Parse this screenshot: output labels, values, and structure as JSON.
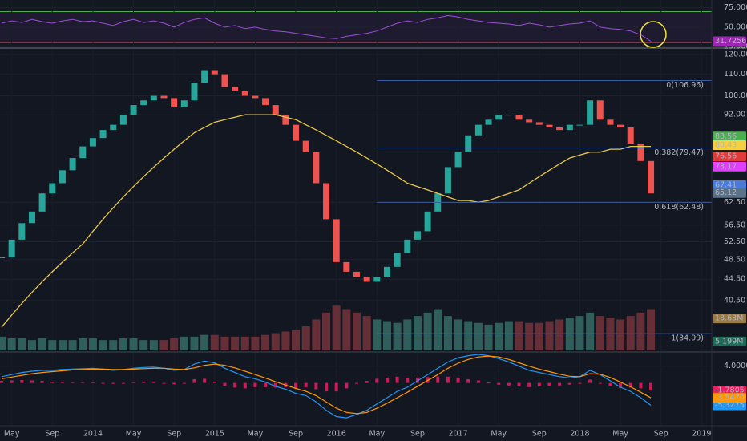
{
  "chart_data": [
    {
      "type": "line",
      "xlim": [
        "2013-04",
        "2019-02"
      ],
      "ylim": [
        25,
        83
      ],
      "yticks": [
        {
          "value": 75,
          "label": "75.0000"
        },
        {
          "value": 50,
          "label": "50.0000"
        },
        {
          "value": 25,
          "label": "25.0000"
        }
      ],
      "hlines": [
        {
          "value": 70,
          "color": "#4caf50"
        },
        {
          "value": 30,
          "color": "#f23645"
        }
      ],
      "x": [
        "2013-04",
        "2013-05",
        "2013-06",
        "2013-07",
        "2013-08",
        "2013-09",
        "2013-10",
        "2013-11",
        "2013-12",
        "2014-01",
        "2014-02",
        "2014-03",
        "2014-04",
        "2014-05",
        "2014-06",
        "2014-07",
        "2014-08",
        "2014-09",
        "2014-10",
        "2014-11",
        "2014-12",
        "2015-01",
        "2015-02",
        "2015-03",
        "2015-04",
        "2015-05",
        "2015-06",
        "2015-07",
        "2015-08",
        "2015-09",
        "2015-10",
        "2015-11",
        "2015-12",
        "2016-01",
        "2016-02",
        "2016-03",
        "2016-04",
        "2016-05",
        "2016-06",
        "2016-07",
        "2016-08",
        "2016-09",
        "2016-10",
        "2016-11",
        "2016-12",
        "2017-01",
        "2017-02",
        "2017-03",
        "2017-04",
        "2017-05",
        "2017-06",
        "2017-07",
        "2017-08",
        "2017-09",
        "2017-10",
        "2017-11",
        "2017-12",
        "2018-01",
        "2018-02",
        "2018-03",
        "2018-04",
        "2018-05",
        "2018-06",
        "2018-07",
        "2018-08"
      ],
      "series": [
        {
          "color": "#9c4fd6",
          "badge_color": "#9c27b0",
          "values": [
            55,
            58,
            56,
            60,
            57,
            55,
            58,
            60,
            57,
            58,
            55,
            52,
            57,
            60,
            56,
            58,
            55,
            50,
            56,
            60,
            62,
            55,
            50,
            52,
            48,
            50,
            47,
            45,
            44,
            42,
            40,
            38,
            36,
            35,
            38,
            40,
            42,
            45,
            50,
            55,
            58,
            56,
            60,
            62,
            65,
            63,
            60,
            58,
            56,
            55,
            54,
            52,
            55,
            53,
            50,
            52,
            54,
            55,
            58,
            50,
            48,
            47,
            45,
            40,
            31.7256
          ]
        }
      ]
    },
    {
      "type": "candlestick",
      "log_scale": true,
      "xlim": [
        "2013-04",
        "2019-02"
      ],
      "ylim": [
        32.5,
        122.6
      ],
      "yticks": [
        {
          "value": 120,
          "label": "120.00"
        },
        {
          "value": 110,
          "label": "110.00"
        },
        {
          "value": 100,
          "label": "100.00"
        },
        {
          "value": 92,
          "label": "92.00"
        },
        {
          "value": 62.5,
          "label": "62.50"
        },
        {
          "value": 56.5,
          "label": "56.50"
        },
        {
          "value": 52.5,
          "label": "52.50"
        },
        {
          "value": 48.5,
          "label": "48.50"
        },
        {
          "value": 44.5,
          "label": "44.50"
        },
        {
          "value": 40.5,
          "label": "40.50"
        }
      ],
      "up_color": "#26a69a",
      "down_color": "#ef5350",
      "x": [
        "2013-04",
        "2013-05",
        "2013-06",
        "2013-07",
        "2013-08",
        "2013-09",
        "2013-10",
        "2013-11",
        "2013-12",
        "2014-01",
        "2014-02",
        "2014-03",
        "2014-04",
        "2014-05",
        "2014-06",
        "2014-07",
        "2014-08",
        "2014-09",
        "2014-10",
        "2014-11",
        "2014-12",
        "2015-01",
        "2015-02",
        "2015-03",
        "2015-04",
        "2015-05",
        "2015-06",
        "2015-07",
        "2015-08",
        "2015-09",
        "2015-10",
        "2015-11",
        "2015-12",
        "2016-01",
        "2016-02",
        "2016-03",
        "2016-04",
        "2016-05",
        "2016-06",
        "2016-07",
        "2016-08",
        "2016-09",
        "2016-10",
        "2016-11",
        "2016-12",
        "2017-01",
        "2017-02",
        "2017-03",
        "2017-04",
        "2017-05",
        "2017-06",
        "2017-07",
        "2017-08",
        "2017-09",
        "2017-10",
        "2017-11",
        "2017-12",
        "2018-01",
        "2018-02",
        "2018-03",
        "2018-04",
        "2018-05",
        "2018-06",
        "2018-07",
        "2018-08"
      ],
      "values": [
        49,
        53,
        57,
        60,
        65,
        68,
        72,
        76,
        80,
        83,
        86,
        88,
        92,
        96,
        98,
        100,
        99,
        95,
        98,
        106,
        112,
        110,
        104,
        102,
        100,
        99,
        96,
        92,
        88,
        82,
        78,
        68,
        58,
        48,
        46,
        45,
        44,
        45,
        47,
        50,
        53,
        55,
        60,
        65,
        73,
        78,
        84,
        88,
        90,
        92,
        92,
        90,
        89,
        88,
        87,
        86,
        88,
        88,
        98,
        90,
        88,
        87,
        81,
        75,
        65
      ],
      "series": [
        {
          "color": "#e6c84a",
          "values": [
            36,
            38,
            40,
            42,
            44,
            46,
            48,
            50,
            52,
            55,
            58,
            61,
            64,
            67,
            70,
            73,
            76,
            79,
            82,
            85,
            87,
            89,
            90,
            91,
            92,
            92,
            92,
            92,
            91,
            90,
            88,
            86,
            84,
            82,
            80,
            78,
            76,
            74,
            72,
            70,
            68,
            67,
            66,
            65,
            64,
            63,
            63,
            62.5,
            63,
            64,
            65,
            66,
            68,
            70,
            72,
            74,
            76,
            77,
            78,
            78,
            79,
            79,
            80,
            80,
            80
          ]
        }
      ],
      "fib_levels": [
        {
          "value": 106.96,
          "label": "0(106.96)"
        },
        {
          "value": 79.47,
          "label": "0.382(79.47)"
        },
        {
          "value": 62.48,
          "label": "0.618(62.48)"
        },
        {
          "value": 34.99,
          "label": "1(34.99)"
        }
      ],
      "fib_start": "2016-05",
      "fib_color": "#3d5a9a",
      "price_badges": [
        {
          "value": 83.56,
          "color": "#4caf50"
        },
        {
          "value": 80.43,
          "color": "#f5d142"
        },
        {
          "value": 76.56,
          "color": "#e03b3b"
        },
        {
          "value": 73.17,
          "color": "#e040fb"
        },
        {
          "value": 67.41,
          "color": "#4a7bd8"
        },
        {
          "value": 65.12,
          "color": "#5a7389"
        }
      ]
    },
    {
      "type": "bar",
      "xlim": [
        "2013-04",
        "2019-02"
      ],
      "ylim": [
        0,
        175
      ],
      "x": [
        "2013-04",
        "2013-05",
        "2013-06",
        "2013-07",
        "2013-08",
        "2013-09",
        "2013-10",
        "2013-11",
        "2013-12",
        "2014-01",
        "2014-02",
        "2014-03",
        "2014-04",
        "2014-05",
        "2014-06",
        "2014-07",
        "2014-08",
        "2014-09",
        "2014-10",
        "2014-11",
        "2014-12",
        "2015-01",
        "2015-02",
        "2015-03",
        "2015-04",
        "2015-05",
        "2015-06",
        "2015-07",
        "2015-08",
        "2015-09",
        "2015-10",
        "2015-11",
        "2015-12",
        "2016-01",
        "2016-02",
        "2016-03",
        "2016-04",
        "2016-05",
        "2016-06",
        "2016-07",
        "2016-08",
        "2016-09",
        "2016-10",
        "2016-11",
        "2016-12",
        "2017-01",
        "2017-02",
        "2017-03",
        "2017-04",
        "2017-05",
        "2017-06",
        "2017-07",
        "2017-08",
        "2017-09",
        "2017-10",
        "2017-11",
        "2017-12",
        "2018-01",
        "2018-02",
        "2018-03",
        "2018-04",
        "2018-05",
        "2018-06",
        "2018-07",
        "2018-08"
      ],
      "values": [
        8,
        7,
        7,
        6,
        7,
        6,
        6,
        6,
        7,
        7,
        6,
        6,
        7,
        7,
        6,
        6,
        6,
        7,
        8,
        8,
        9,
        9,
        8,
        8,
        8,
        8,
        9,
        10,
        11,
        12,
        14,
        18,
        22,
        26,
        24,
        22,
        20,
        18,
        17,
        16,
        18,
        20,
        22,
        24,
        20,
        18,
        17,
        16,
        15,
        16,
        17,
        17,
        16,
        16,
        17,
        18,
        19,
        20,
        22,
        20,
        19,
        18,
        20,
        22,
        24
      ],
      "color": "#3d7f74",
      "badges": [
        {
          "value": 18.63,
          "label": "18.63M",
          "color": "#9a7a45"
        },
        {
          "value": 5.199,
          "label": "5.199M",
          "color": "#1e6b57"
        }
      ]
    },
    {
      "type": "macd",
      "xlim": [
        "2013-04",
        "2019-02"
      ],
      "ylim": [
        -10,
        7
      ],
      "yticks": [
        {
          "value": 4,
          "label": "4.0000"
        }
      ],
      "xticks": [
        {
          "value": "2013-05",
          "label": "May"
        },
        {
          "value": "2013-09",
          "label": "Sep"
        },
        {
          "value": "2014-01",
          "label": "2014"
        },
        {
          "value": "2014-05",
          "label": "May"
        },
        {
          "value": "2014-09",
          "label": "Sep"
        },
        {
          "value": "2015-01",
          "label": "2015"
        },
        {
          "value": "2015-05",
          "label": "May"
        },
        {
          "value": "2015-09",
          "label": "Sep"
        },
        {
          "value": "2016-01",
          "label": "2016"
        },
        {
          "value": "2016-05",
          "label": "May"
        },
        {
          "value": "2016-09",
          "label": "Sep"
        },
        {
          "value": "2017-01",
          "label": "2017"
        },
        {
          "value": "2017-05",
          "label": "May"
        },
        {
          "value": "2017-09",
          "label": "Sep"
        },
        {
          "value": "2018-01",
          "label": "2018"
        },
        {
          "value": "2018-05",
          "label": "May"
        },
        {
          "value": "2018-09",
          "label": "Sep"
        },
        {
          "value": "2019-01",
          "label": "2019"
        }
      ],
      "x": [
        "2013-04",
        "2013-05",
        "2013-06",
        "2013-07",
        "2013-08",
        "2013-09",
        "2013-10",
        "2013-11",
        "2013-12",
        "2014-01",
        "2014-02",
        "2014-03",
        "2014-04",
        "2014-05",
        "2014-06",
        "2014-07",
        "2014-08",
        "2014-09",
        "2014-10",
        "2014-11",
        "2014-12",
        "2015-01",
        "2015-02",
        "2015-03",
        "2015-04",
        "2015-05",
        "2015-06",
        "2015-07",
        "2015-08",
        "2015-09",
        "2015-10",
        "2015-11",
        "2015-12",
        "2016-01",
        "2016-02",
        "2016-03",
        "2016-04",
        "2016-05",
        "2016-06",
        "2016-07",
        "2016-08",
        "2016-09",
        "2016-10",
        "2016-11",
        "2016-12",
        "2017-01",
        "2017-02",
        "2017-03",
        "2017-04",
        "2017-05",
        "2017-06",
        "2017-07",
        "2017-08",
        "2017-09",
        "2017-10",
        "2017-11",
        "2017-12",
        "2018-01",
        "2018-02",
        "2018-03",
        "2018-04",
        "2018-05",
        "2018-06",
        "2018-07",
        "2018-08"
      ],
      "histogram": {
        "color": "#e91e63",
        "values": [
          0.5,
          0.6,
          0.7,
          0.6,
          0.5,
          0.3,
          0.3,
          0.2,
          0.2,
          0.2,
          0,
          -0.2,
          0,
          0.2,
          0.3,
          0.3,
          0,
          -0.3,
          0,
          0.9,
          1,
          0.3,
          -0.7,
          -1.1,
          -1.3,
          -1,
          -1,
          -1.1,
          -1,
          -1.2,
          -1,
          -1.5,
          -2,
          -2,
          -1.3,
          -0.2,
          0.5,
          1,
          1.3,
          1.5,
          1.2,
          1.3,
          1.4,
          1.5,
          1.5,
          1.3,
          0.9,
          0.6,
          0.1,
          -0.4,
          -0.6,
          -0.8,
          -1,
          -0.8,
          -0.7,
          -0.6,
          -0.4,
          0,
          0.8,
          -0.1,
          -0.8,
          -1.2,
          -1.1,
          -1.3,
          -1.7805
        ]
      },
      "series": [
        {
          "color": "#2196f3",
          "values": [
            1.5,
            2,
            2.5,
            2.8,
            3,
            3,
            3.2,
            3.3,
            3.4,
            3.5,
            3.3,
            3,
            3.2,
            3.5,
            3.7,
            3.8,
            3.5,
            3,
            3.2,
            4.5,
            5.2,
            4.8,
            3.5,
            2.5,
            1.5,
            1,
            0.2,
            -0.8,
            -1.5,
            -2.5,
            -3,
            -4.5,
            -6.5,
            -8,
            -8.3,
            -7.5,
            -6.5,
            -5,
            -3.5,
            -2,
            -1,
            0.5,
            2,
            3.5,
            5,
            6,
            6.5,
            6.8,
            6.5,
            5.8,
            5,
            4,
            3,
            2.5,
            2,
            1.5,
            1.2,
            1.5,
            3,
            2,
            0.5,
            -1,
            -2,
            -3.5,
            -5.3275
          ]
        },
        {
          "color": "#ff9800",
          "badge_label": "-3.5470",
          "values": [
            1,
            1.4,
            1.8,
            2.2,
            2.5,
            2.7,
            2.9,
            3.1,
            3.2,
            3.3,
            3.3,
            3.2,
            3.2,
            3.3,
            3.4,
            3.5,
            3.5,
            3.3,
            3.2,
            3.6,
            4.2,
            4.5,
            4.2,
            3.6,
            2.8,
            2,
            1.2,
            0.3,
            -0.5,
            -1.3,
            -2,
            -3,
            -4.5,
            -6,
            -7,
            -7.3,
            -7,
            -6,
            -4.8,
            -3.5,
            -2.2,
            -0.8,
            0.6,
            2,
            3.5,
            4.7,
            5.6,
            6.2,
            6.4,
            6.2,
            5.6,
            4.8,
            4,
            3.3,
            2.7,
            2.1,
            1.6,
            1.5,
            2.2,
            2.1,
            1.3,
            0.2,
            -0.9,
            -2.2,
            -3.547
          ]
        }
      ]
    }
  ]
}
